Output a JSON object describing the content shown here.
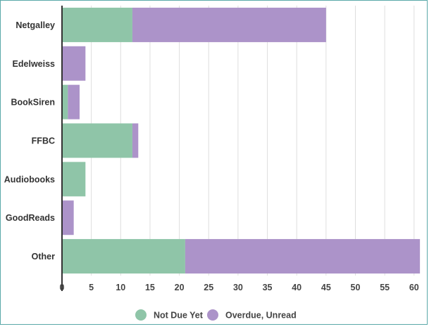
{
  "chart_data": {
    "type": "bar",
    "orientation": "horizontal",
    "stacked": true,
    "categories": [
      "Netgalley",
      "Edelweiss",
      "BookSiren",
      "FFBC",
      "Audiobooks",
      "GoodReads",
      "Other"
    ],
    "series": [
      {
        "name": "Not Due Yet",
        "color": "#8fc5a8",
        "values": [
          12,
          0,
          1,
          12,
          4,
          0,
          21
        ]
      },
      {
        "name": "Overdue, Unread",
        "color": "#ac93c9",
        "values": [
          33,
          4,
          2,
          1,
          0,
          2,
          40
        ]
      }
    ],
    "xticks": [
      0,
      5,
      10,
      15,
      20,
      25,
      30,
      35,
      40,
      45,
      50,
      55,
      60
    ],
    "xlim": [
      0,
      61
    ],
    "grid": true,
    "legend_position": "bottom"
  }
}
